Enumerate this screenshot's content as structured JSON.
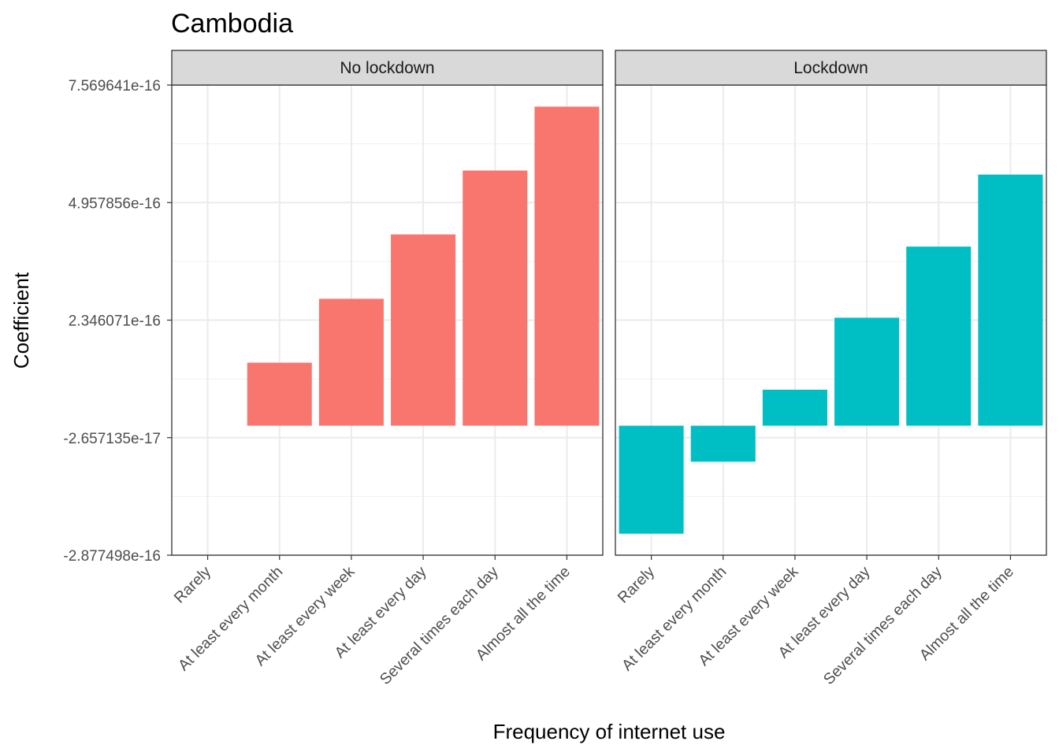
{
  "chart_data": {
    "type": "bar",
    "title": "Cambodia",
    "xlabel": "Frequency of internet use",
    "ylabel": "Coefficient",
    "categories": [
      "Rarely",
      "At least every month",
      "At least every week",
      "At least every day",
      "Several times each day",
      "Almost all the time"
    ],
    "y_ticks": [
      {
        "value": 7.569641e-16,
        "label": "7.569641e-16"
      },
      {
        "value": 4.957856e-16,
        "label": "4.957856e-16"
      },
      {
        "value": 2.346071e-16,
        "label": "2.346071e-16"
      },
      {
        "value": -2.657135e-17,
        "label": "-2.657135e-17"
      },
      {
        "value": -2.877498e-16,
        "label": "-2.877498e-16"
      }
    ],
    "ylim": [
      -2.877498e-16,
      7.569641e-16
    ],
    "grid": true,
    "legend": "none",
    "panels": [
      {
        "name": "No lockdown",
        "color": "#F8766D",
        "values": [
          null,
          1.4e-16,
          2.82e-16,
          4.25e-16,
          5.67e-16,
          7.09e-16
        ]
      },
      {
        "name": "Lockdown",
        "color": "#00BFC4",
        "values": [
          -2.4e-16,
          -8e-17,
          8e-17,
          2.4e-16,
          3.98e-16,
          5.58e-16
        ]
      }
    ]
  }
}
